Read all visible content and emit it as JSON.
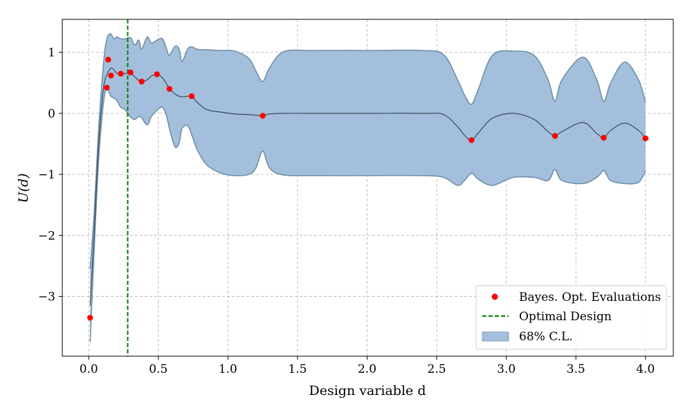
{
  "chart_data": {
    "type": "line",
    "xlabel": "Design variable d",
    "ylabel": "U(d)",
    "xlim": [
      -0.19,
      4.2
    ],
    "ylim": [
      -3.98,
      1.54
    ],
    "xticks": [
      0.0,
      0.5,
      1.0,
      1.5,
      2.0,
      2.5,
      3.0,
      3.5,
      4.0
    ],
    "xtick_labels": [
      "0.0",
      "0.5",
      "1.0",
      "1.5",
      "2.0",
      "2.5",
      "3.0",
      "3.5",
      "4.0"
    ],
    "yticks": [
      1,
      0,
      -1,
      -2,
      -3
    ],
    "ytick_labels": [
      "1",
      "0",
      "−1",
      "−2",
      "−3"
    ],
    "grid": true,
    "legend_position": "lower-right",
    "series": [
      {
        "name": "Bayes. Opt. Evaluations",
        "kind": "scatter",
        "color": "#ff0000",
        "x": [
          0.01,
          0.13,
          0.14,
          0.16,
          0.23,
          0.3,
          0.38,
          0.49,
          0.58,
          0.74,
          1.25,
          2.75,
          3.35,
          3.7,
          4.0
        ],
        "y": [
          -3.35,
          0.42,
          0.88,
          0.62,
          0.65,
          0.67,
          0.52,
          0.64,
          0.4,
          0.28,
          -0.04,
          -0.44,
          -0.37,
          -0.4,
          -0.41
        ]
      },
      {
        "name": "Optimal Design",
        "kind": "vline",
        "color": "#008000",
        "x": 0.28
      },
      {
        "name": "68% C.L.",
        "kind": "band",
        "color": "#a3bfdb",
        "edge_color": "#6f8faa",
        "x": [
          0.01,
          0.04,
          0.07,
          0.1,
          0.12,
          0.13,
          0.14,
          0.16,
          0.18,
          0.2,
          0.23,
          0.26,
          0.3,
          0.33,
          0.36,
          0.38,
          0.42,
          0.45,
          0.49,
          0.53,
          0.56,
          0.58,
          0.62,
          0.65,
          0.67,
          0.71,
          0.74,
          0.78,
          0.85,
          0.95,
          1.05,
          1.15,
          1.2,
          1.25,
          1.3,
          1.4,
          1.6,
          2.0,
          2.4,
          2.55,
          2.65,
          2.7,
          2.75,
          2.8,
          2.9,
          3.05,
          3.2,
          3.3,
          3.35,
          3.4,
          3.55,
          3.65,
          3.7,
          3.75,
          3.85,
          3.95,
          4.0
        ],
        "lower": [
          -3.75,
          -2.2,
          -0.8,
          0.05,
          0.38,
          0.42,
          0.38,
          0.28,
          0.25,
          0.22,
          0.1,
          0.06,
          -0.06,
          -0.1,
          -0.05,
          -0.07,
          -0.19,
          -0.05,
          0.05,
          0.1,
          -0.05,
          -0.25,
          -0.55,
          -0.48,
          -0.25,
          -0.2,
          -0.35,
          -0.6,
          -0.85,
          -0.98,
          -1.02,
          -1.0,
          -0.9,
          -0.62,
          -0.9,
          -1.01,
          -1.02,
          -1.02,
          -1.02,
          -1.05,
          -1.18,
          -1.1,
          -0.98,
          -1.08,
          -1.18,
          -1.05,
          -1.05,
          -1.1,
          -0.92,
          -1.1,
          -1.15,
          -1.05,
          -0.94,
          -1.1,
          -1.15,
          -1.13,
          -0.94
        ],
        "mean": [
          -3.15,
          -1.9,
          -0.55,
          0.3,
          0.58,
          0.62,
          0.68,
          0.74,
          0.72,
          0.66,
          0.65,
          0.65,
          0.66,
          0.6,
          0.54,
          0.52,
          0.55,
          0.61,
          0.64,
          0.58,
          0.48,
          0.4,
          0.32,
          0.28,
          0.27,
          0.28,
          0.28,
          0.18,
          0.06,
          0.02,
          -0.01,
          -0.02,
          -0.03,
          -0.04,
          -0.01,
          0.0,
          0.0,
          0.0,
          0.0,
          -0.02,
          -0.22,
          -0.36,
          -0.44,
          -0.32,
          -0.08,
          0.0,
          -0.1,
          -0.3,
          -0.37,
          -0.3,
          -0.15,
          -0.33,
          -0.4,
          -0.28,
          -0.16,
          -0.28,
          -0.41
        ],
        "upper": [
          -2.55,
          -1.6,
          -0.3,
          0.65,
          1.1,
          1.2,
          1.28,
          1.3,
          1.22,
          1.25,
          1.22,
          1.22,
          1.24,
          1.12,
          1.2,
          1.05,
          1.25,
          1.15,
          1.2,
          1.22,
          1.05,
          0.95,
          1.1,
          1.05,
          0.85,
          1.05,
          1.09,
          1.05,
          1.04,
          1.03,
          1.02,
          0.9,
          0.7,
          0.52,
          0.75,
          1.01,
          1.03,
          1.03,
          1.03,
          0.96,
          0.55,
          0.3,
          0.15,
          0.4,
          0.95,
          1.02,
          0.95,
          0.55,
          0.2,
          0.55,
          0.92,
          0.55,
          0.2,
          0.5,
          0.84,
          0.55,
          0.18
        ]
      }
    ]
  },
  "legend": {
    "items": [
      {
        "label": "Bayes. Opt. Evaluations",
        "marker": "red-dot",
        "color": "#ff0000"
      },
      {
        "label": "Optimal Design",
        "marker": "green-dashed-line",
        "color": "#008000"
      },
      {
        "label": "68% C.L.",
        "marker": "blue-filled-box",
        "color": "#a3bfdb"
      }
    ]
  }
}
